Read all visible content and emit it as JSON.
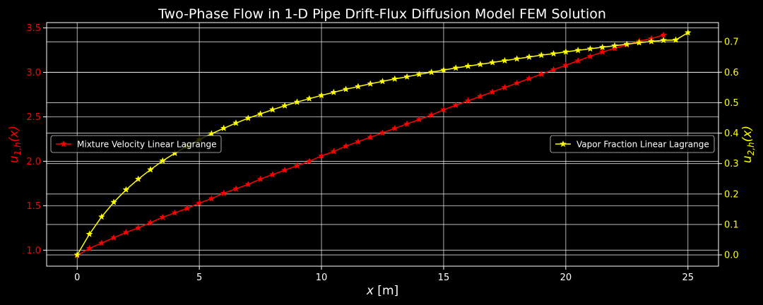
{
  "chart_data": {
    "type": "line",
    "title": "Two-Phase Flow in 1-D Pipe Drift-Flux Diffusion Model FEM Solution",
    "xlabel": "x [m]",
    "xlim": [
      -1.25,
      26.25
    ],
    "xticks": [
      0,
      5,
      10,
      15,
      20,
      25
    ],
    "grid": true,
    "axes": {
      "left": {
        "label": "u_{1,h}(x)",
        "color": "#ff0000",
        "ylim": [
          0.82,
          3.56
        ],
        "ticks": [
          1.0,
          1.5,
          2.0,
          2.5,
          3.0,
          3.5
        ],
        "tick_labels": [
          "1.0",
          "1.5",
          "2.0",
          "2.5",
          "3.0",
          "3.5"
        ]
      },
      "right": {
        "label": "u_{2,h}(x)",
        "color": "#ffff00",
        "ylim": [
          -0.037,
          0.763
        ],
        "ticks": [
          0.0,
          0.1,
          0.2,
          0.3,
          0.4,
          0.5,
          0.6,
          0.7
        ],
        "tick_labels": [
          "0.0",
          "0.1",
          "0.2",
          "0.3",
          "0.4",
          "0.5",
          "0.6",
          "0.7"
        ]
      }
    },
    "series": [
      {
        "name": "Mixture Velocity Linear Lagrange",
        "axis": "left",
        "color": "#ff0000",
        "marker": "star",
        "legend_position": "center-left",
        "x": [
          0,
          0.5,
          1,
          1.5,
          2,
          2.5,
          3,
          3.5,
          4,
          4.5,
          5,
          5.5,
          6,
          6.5,
          7,
          7.5,
          8,
          8.5,
          9,
          9.5,
          10,
          10.5,
          11,
          11.5,
          12,
          12.5,
          13,
          13.5,
          14,
          14.5,
          15,
          15.5,
          16,
          16.5,
          17,
          17.5,
          18,
          18.5,
          19,
          19.5,
          20,
          20.5,
          21,
          21.5,
          22,
          22.5,
          23,
          23.5,
          24
        ],
        "values": [
          0.94,
          1.02,
          1.08,
          1.14,
          1.2,
          1.25,
          1.31,
          1.37,
          1.42,
          1.47,
          1.53,
          1.58,
          1.64,
          1.69,
          1.74,
          1.8,
          1.85,
          1.9,
          1.95,
          2.0,
          2.06,
          2.11,
          2.17,
          2.22,
          2.27,
          2.32,
          2.37,
          2.42,
          2.47,
          2.52,
          2.58,
          2.63,
          2.68,
          2.73,
          2.78,
          2.83,
          2.88,
          2.93,
          2.98,
          3.03,
          3.08,
          3.13,
          3.18,
          3.23,
          3.27,
          3.31,
          3.35,
          3.38,
          3.42
        ]
      },
      {
        "name": "Vapor Fraction Linear Lagrange",
        "axis": "right",
        "color": "#ffff00",
        "marker": "star",
        "legend_position": "center-right",
        "x": [
          0,
          0.5,
          1,
          1.5,
          2,
          2.5,
          3,
          3.5,
          4,
          4.5,
          5,
          5.5,
          6,
          6.5,
          7,
          7.5,
          8,
          8.5,
          9,
          9.5,
          10,
          10.5,
          11,
          11.5,
          12,
          12.5,
          13,
          13.5,
          14,
          14.5,
          15,
          15.5,
          16,
          16.5,
          17,
          17.5,
          18,
          18.5,
          19,
          19.5,
          20,
          20.5,
          21,
          21.5,
          22,
          22.5,
          23,
          23.5,
          24,
          24.5,
          25
        ],
        "values": [
          0.0,
          0.068,
          0.125,
          0.173,
          0.214,
          0.249,
          0.28,
          0.309,
          0.334,
          0.357,
          0.379,
          0.398,
          0.416,
          0.433,
          0.449,
          0.463,
          0.477,
          0.49,
          0.502,
          0.513,
          0.524,
          0.534,
          0.544,
          0.553,
          0.562,
          0.57,
          0.578,
          0.585,
          0.593,
          0.6,
          0.607,
          0.614,
          0.62,
          0.626,
          0.632,
          0.638,
          0.644,
          0.65,
          0.656,
          0.661,
          0.667,
          0.672,
          0.677,
          0.682,
          0.687,
          0.692,
          0.697,
          0.701,
          0.705,
          0.706,
          0.73
        ]
      }
    ]
  }
}
